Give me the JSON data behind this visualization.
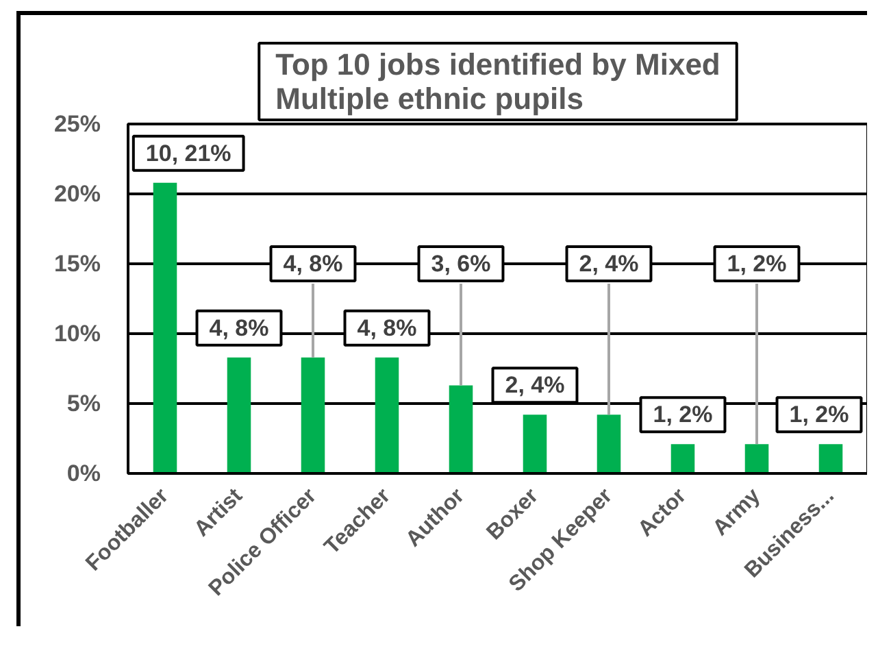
{
  "chart_data": {
    "type": "bar",
    "title": "Top 10 jobs identified by Mixed Multiple ethnic pupils",
    "categories": [
      "Footballer",
      "Artist",
      "Police Officer",
      "Teacher",
      "Author",
      "Boxer",
      "Shop Keeper",
      "Actor",
      "Army",
      "Business..."
    ],
    "values": [
      20.8,
      8.3,
      8.3,
      8.3,
      6.3,
      4.2,
      4.2,
      2.1,
      2.1,
      2.1
    ],
    "color": "#00b050",
    "value_labels": [
      "10, 21%",
      "4, 8%",
      "4, 8%",
      "4, 8%",
      "3, 6%",
      "2, 4%",
      "2, 4%",
      "1, 2%",
      "1, 2%",
      "1, 2%"
    ],
    "ylim": [
      0,
      25
    ],
    "yticks": [
      {
        "value": 0,
        "label": "0%"
      },
      {
        "value": 5,
        "label": "5%"
      },
      {
        "value": 10,
        "label": "10%"
      },
      {
        "value": 15,
        "label": "15%"
      },
      {
        "value": 20,
        "label": "20%"
      },
      {
        "value": 25,
        "label": "25%"
      }
    ],
    "grid": "y"
  }
}
